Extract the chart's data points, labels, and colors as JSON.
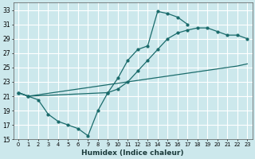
{
  "xlabel": "Humidex (Indice chaleur)",
  "bg_color": "#cce8ec",
  "grid_color": "#ffffff",
  "line_color": "#1a6b6b",
  "xlim": [
    -0.5,
    23.5
  ],
  "ylim": [
    15,
    34
  ],
  "yticks": [
    15,
    17,
    19,
    21,
    23,
    25,
    27,
    29,
    31,
    33
  ],
  "xticks": [
    0,
    1,
    2,
    3,
    4,
    5,
    6,
    7,
    8,
    9,
    10,
    11,
    12,
    13,
    14,
    15,
    16,
    17,
    18,
    19,
    20,
    21,
    22,
    23
  ],
  "line1_x": [
    0,
    1,
    2,
    3,
    4,
    5,
    6,
    7,
    8,
    9,
    10,
    11,
    12,
    13,
    14,
    15,
    16,
    17
  ],
  "line1_y": [
    21.5,
    21.0,
    20.5,
    18.5,
    17.5,
    17.0,
    16.5,
    15.5,
    19.0,
    21.5,
    23.5,
    26.0,
    27.5,
    28.0,
    32.8,
    32.5,
    32.0,
    31.0
  ],
  "line2_x": [
    0,
    1,
    22,
    23
  ],
  "line2_y": [
    21.5,
    21.0,
    25.2,
    25.5
  ],
  "line3_x": [
    0,
    1,
    9,
    10,
    11,
    12,
    13,
    14,
    15,
    16,
    17,
    18,
    19,
    20,
    21,
    22,
    23
  ],
  "line3_y": [
    21.5,
    21.0,
    21.5,
    22.0,
    23.0,
    24.5,
    26.0,
    27.5,
    29.0,
    29.8,
    30.2,
    30.5,
    30.5,
    30.0,
    29.5,
    29.5,
    29.0
  ]
}
